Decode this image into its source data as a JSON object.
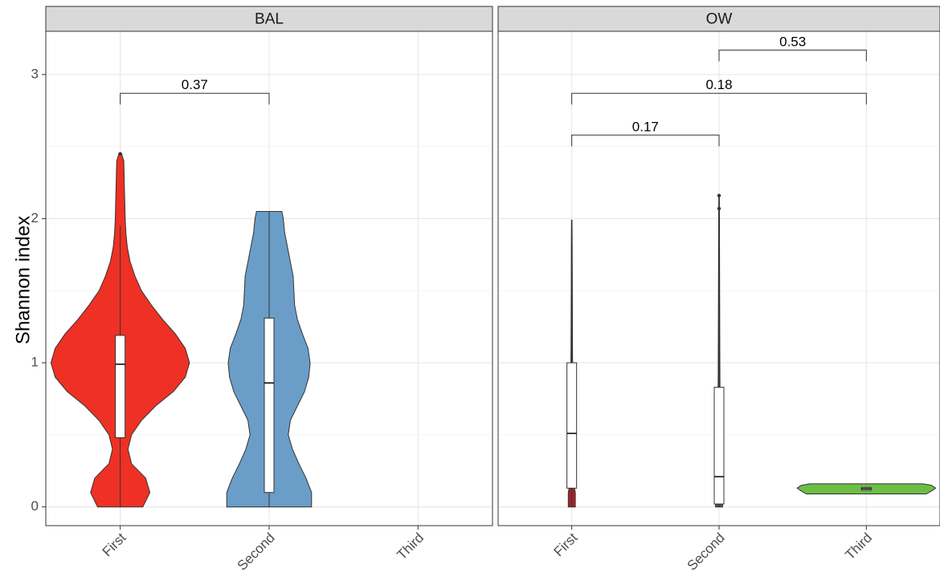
{
  "chart_data": {
    "type": "violin",
    "ylabel": "Shannon index",
    "xlabel": "",
    "ylim": [
      -0.13,
      3.3
    ],
    "yticks": [
      0,
      1,
      2,
      3
    ],
    "categories": [
      "First",
      "Second",
      "Third"
    ],
    "panels": [
      {
        "name": "BAL",
        "groups": [
          {
            "category": "First",
            "color": "#EE3124",
            "violin": [
              [
                0,
                0.32
              ],
              [
                0.1,
                0.42
              ],
              [
                0.2,
                0.36
              ],
              [
                0.3,
                0.16
              ],
              [
                0.4,
                0.11
              ],
              [
                0.5,
                0.16
              ],
              [
                0.6,
                0.3
              ],
              [
                0.7,
                0.5
              ],
              [
                0.8,
                0.75
              ],
              [
                0.9,
                0.92
              ],
              [
                1.0,
                0.98
              ],
              [
                1.1,
                0.92
              ],
              [
                1.2,
                0.78
              ],
              [
                1.3,
                0.6
              ],
              [
                1.4,
                0.44
              ],
              [
                1.5,
                0.3
              ],
              [
                1.6,
                0.21
              ],
              [
                1.7,
                0.14
              ],
              [
                1.8,
                0.1
              ],
              [
                1.9,
                0.08
              ],
              [
                2.0,
                0.07
              ],
              [
                2.1,
                0.065
              ],
              [
                2.2,
                0.06
              ],
              [
                2.3,
                0.055
              ],
              [
                2.4,
                0.05
              ],
              [
                2.45,
                0.02
              ]
            ],
            "box": {
              "min": 0,
              "q1": 0.48,
              "median": 0.99,
              "q3": 1.19,
              "max": 1.95
            },
            "outliers": [
              2.45
            ]
          },
          {
            "category": "Second",
            "color": "#6A9EC8",
            "violin": [
              [
                0,
                0.6
              ],
              [
                0.1,
                0.6
              ],
              [
                0.2,
                0.52
              ],
              [
                0.3,
                0.42
              ],
              [
                0.4,
                0.33
              ],
              [
                0.5,
                0.27
              ],
              [
                0.6,
                0.3
              ],
              [
                0.7,
                0.4
              ],
              [
                0.8,
                0.5
              ],
              [
                0.9,
                0.56
              ],
              [
                1.0,
                0.58
              ],
              [
                1.1,
                0.55
              ],
              [
                1.2,
                0.47
              ],
              [
                1.3,
                0.4
              ],
              [
                1.4,
                0.36
              ],
              [
                1.5,
                0.35
              ],
              [
                1.6,
                0.34
              ],
              [
                1.7,
                0.3
              ],
              [
                1.8,
                0.26
              ],
              [
                1.9,
                0.22
              ],
              [
                2.0,
                0.2
              ],
              [
                2.05,
                0.18
              ]
            ],
            "box": {
              "min": 0,
              "q1": 0.1,
              "median": 0.86,
              "q3": 1.31,
              "max": 2.05
            },
            "outliers": []
          }
        ],
        "comparisons": [
          {
            "from": "First",
            "to": "Second",
            "y": 2.87,
            "label": "0.37"
          }
        ]
      },
      {
        "name": "OW",
        "groups": [
          {
            "category": "First",
            "color": "#A8242A",
            "violin": [
              [
                0,
                0.05
              ],
              [
                0.1,
                0.05
              ],
              [
                0.15,
                0.03
              ],
              [
                0.3,
                0.025
              ],
              [
                0.6,
                0.018
              ],
              [
                0.9,
                0.013
              ],
              [
                1.2,
                0.01
              ],
              [
                1.5,
                0.008
              ],
              [
                1.8,
                0.006
              ],
              [
                1.99,
                0.004
              ]
            ],
            "box": {
              "min": 0,
              "q1": 0.13,
              "median": 0.51,
              "q3": 1.0,
              "max": 1.99
            },
            "outliers": []
          },
          {
            "category": "Second",
            "color": "#3C5872",
            "violin": [
              [
                0,
                0.05
              ],
              [
                0.05,
                0.05
              ],
              [
                0.1,
                0.03
              ],
              [
                0.3,
                0.025
              ],
              [
                0.6,
                0.018
              ],
              [
                0.9,
                0.013
              ],
              [
                1.2,
                0.01
              ],
              [
                1.6,
                0.008
              ],
              [
                2.0,
                0.006
              ],
              [
                2.15,
                0.004
              ]
            ],
            "box": {
              "min": 0,
              "q1": 0.02,
              "median": 0.21,
              "q3": 0.83,
              "max": 1.95
            },
            "outliers": [
              2.07,
              2.16
            ]
          },
          {
            "category": "Third",
            "color": "#6CBE45",
            "violin": [
              [
                0.09,
                0.85
              ],
              [
                0.11,
                0.92
              ],
              [
                0.13,
                0.98
              ],
              [
                0.15,
                0.92
              ],
              [
                0.16,
                0.8
              ]
            ],
            "box": {
              "min": 0.11,
              "q1": 0.115,
              "median": 0.125,
              "q3": 0.135,
              "max": 0.14
            },
            "outliers": []
          }
        ],
        "comparisons": [
          {
            "from": "Second",
            "to": "Third",
            "y": 3.17,
            "label": "0.53"
          },
          {
            "from": "First",
            "to": "Third",
            "y": 2.87,
            "label": "0.18"
          },
          {
            "from": "First",
            "to": "Second",
            "y": 2.58,
            "label": "0.17"
          }
        ]
      }
    ]
  }
}
